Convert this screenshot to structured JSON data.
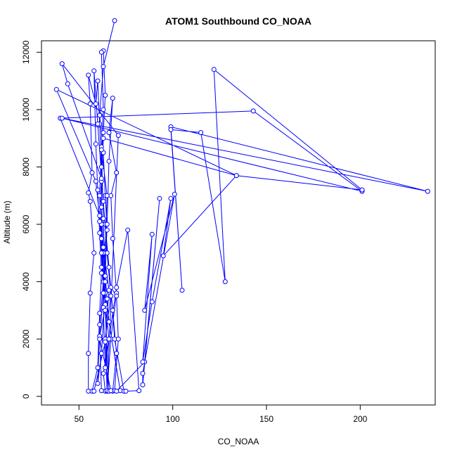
{
  "chart_data": {
    "type": "line",
    "title": "ATOM1 Southbound CO_NOAA",
    "xlabel": "CO_NOAA",
    "ylabel": "Altitude (m)",
    "xlim": [
      30,
      240
    ],
    "ylim": [
      -300,
      12400
    ],
    "xticks": [
      50,
      100,
      150,
      200
    ],
    "yticks": [
      0,
      2000,
      4000,
      6000,
      8000,
      10000,
      12000
    ],
    "grid": false,
    "legend": "none",
    "colors": {
      "series": "#0000ff",
      "axes": "#000000",
      "background": "#ffffff"
    },
    "series": [
      {
        "marker": "open-circle",
        "points": [
          [
            69,
            13100
          ],
          [
            63,
            11500
          ],
          [
            61,
            9800
          ],
          [
            63,
            8500
          ],
          [
            64,
            7000
          ],
          [
            65,
            5800
          ],
          [
            62,
            4500
          ],
          [
            64,
            3200
          ],
          [
            66,
            2000
          ],
          [
            63,
            800
          ],
          [
            64,
            180
          ],
          [
            68,
            180
          ],
          [
            70,
            1500
          ],
          [
            68,
            3000
          ],
          [
            66,
            4500
          ],
          [
            64,
            6000
          ],
          [
            62,
            7500
          ],
          [
            63,
            9200
          ],
          [
            64,
            10500
          ],
          [
            63,
            12050
          ],
          [
            62,
            12000
          ],
          [
            63,
            10000
          ],
          [
            62,
            8700
          ],
          [
            61,
            7000
          ],
          [
            62,
            5500
          ],
          [
            63,
            4000
          ],
          [
            61,
            2500
          ],
          [
            60,
            450
          ],
          [
            62,
            1500
          ],
          [
            64,
            3600
          ],
          [
            63,
            5200
          ],
          [
            62,
            6600
          ],
          [
            62,
            8000
          ],
          [
            61,
            9500
          ],
          [
            60,
            11000
          ],
          [
            59,
            10200
          ],
          [
            55,
            11200
          ],
          [
            56,
            10200
          ],
          [
            57,
            7800
          ],
          [
            55,
            7100
          ],
          [
            56,
            6800
          ],
          [
            58,
            5000
          ],
          [
            56,
            3600
          ],
          [
            55,
            1500
          ],
          [
            55,
            180
          ],
          [
            57,
            180
          ],
          [
            60,
            1000
          ],
          [
            61,
            2900
          ],
          [
            62,
            4300
          ],
          [
            61,
            5700
          ],
          [
            60,
            7200
          ],
          [
            59,
            8800
          ],
          [
            58,
            11350
          ],
          [
            60,
            9500
          ],
          [
            63,
            6800
          ],
          [
            65,
            5000
          ],
          [
            67,
            3500
          ],
          [
            64,
            2000
          ],
          [
            65,
            180
          ],
          [
            67,
            2000
          ],
          [
            70,
            3600
          ],
          [
            68,
            5500
          ],
          [
            67,
            7000
          ],
          [
            70,
            7800
          ],
          [
            66,
            9200
          ],
          [
            68,
            10400
          ],
          [
            66,
            8200
          ],
          [
            65,
            6000
          ],
          [
            64,
            4200
          ],
          [
            66,
            2600
          ],
          [
            72,
            200
          ],
          [
            74,
            180
          ],
          [
            69,
            2000
          ],
          [
            67,
            3800
          ],
          [
            70,
            3500
          ],
          [
            71,
            2000
          ],
          [
            69,
            200
          ],
          [
            75,
            180
          ],
          [
            82,
            200
          ],
          [
            76,
            5800
          ],
          [
            70,
            3800
          ],
          [
            66,
            2000
          ],
          [
            64,
            1000
          ],
          [
            63,
            3100
          ],
          [
            65,
            7000
          ],
          [
            62,
            8600
          ],
          [
            63,
            6200
          ],
          [
            64,
            4000
          ],
          [
            65,
            200
          ],
          [
            71,
            9100
          ],
          [
            41,
            11600
          ],
          [
            44,
            10900
          ],
          [
            62,
            7600
          ],
          [
            62,
            6000
          ],
          [
            64,
            3000
          ],
          [
            66,
            180
          ],
          [
            70,
            180
          ],
          [
            85,
            1200
          ],
          [
            93,
            6900
          ],
          [
            84,
            400
          ],
          [
            84,
            800
          ],
          [
            101,
            7050
          ],
          [
            85,
            3000
          ],
          [
            89,
            5650
          ],
          [
            84,
            1200
          ],
          [
            89,
            3300
          ],
          [
            99,
            6900
          ],
          [
            95,
            4900
          ],
          [
            134,
            7700
          ],
          [
            38,
            10700
          ],
          [
            59,
            7500
          ],
          [
            63,
            5000
          ],
          [
            65,
            3400
          ],
          [
            61,
            2100
          ],
          [
            62,
            200
          ],
          [
            67,
            200
          ],
          [
            61,
            2000
          ],
          [
            63,
            3600
          ],
          [
            62,
            5000
          ],
          [
            61,
            6300
          ],
          [
            40,
            9700
          ],
          [
            143,
            9950
          ],
          [
            201,
            7150
          ],
          [
            41,
            9700
          ],
          [
            236,
            7150
          ],
          [
            99,
            9400
          ],
          [
            105,
            3700
          ],
          [
            99,
            9300
          ],
          [
            115,
            9200
          ],
          [
            128,
            4000
          ],
          [
            122,
            11400
          ],
          [
            201,
            7200
          ],
          [
            134,
            7700
          ],
          [
            63,
            9000
          ],
          [
            61,
            6100
          ],
          [
            66,
            3700
          ],
          [
            64,
            1900
          ],
          [
            58,
            180
          ]
        ]
      }
    ]
  }
}
